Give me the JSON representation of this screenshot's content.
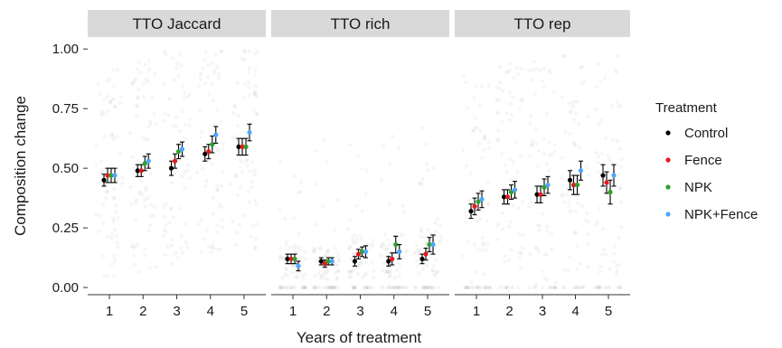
{
  "chart_data": {
    "type": "scatter",
    "facets": [
      "TTO Jaccard",
      "TTO rich",
      "TTO rep"
    ],
    "x": [
      1,
      2,
      3,
      4,
      5
    ],
    "xlabel": "Years of treatment",
    "ylabel": "Composition change",
    "ylim": [
      -0.03,
      1.05
    ],
    "yticks": [
      "0.00",
      "0.25",
      "0.50",
      "0.75",
      "1.00"
    ],
    "legend_title": "Treatment",
    "legend_position": "right",
    "series": [
      {
        "name": "Control",
        "color": "#000000",
        "values": [
          [
            0.45,
            0.49,
            0.5,
            0.56,
            0.59
          ],
          [
            0.12,
            0.11,
            0.11,
            0.11,
            0.12
          ],
          [
            0.32,
            0.38,
            0.39,
            0.45,
            0.47
          ]
        ],
        "errors": [
          [
            0.025,
            0.025,
            0.03,
            0.03,
            0.035
          ],
          [
            0.02,
            0.015,
            0.02,
            0.02,
            0.02
          ],
          [
            0.03,
            0.03,
            0.035,
            0.04,
            0.045
          ]
        ]
      },
      {
        "name": "Fence",
        "color": "#e41a1c",
        "values": [
          [
            0.47,
            0.49,
            0.53,
            0.57,
            0.59
          ],
          [
            0.12,
            0.1,
            0.14,
            0.12,
            0.14
          ],
          [
            0.34,
            0.38,
            0.39,
            0.43,
            0.44
          ]
        ],
        "errors": [
          [
            0.03,
            0.025,
            0.03,
            0.03,
            0.035
          ],
          [
            0.02,
            0.015,
            0.02,
            0.025,
            0.025
          ],
          [
            0.035,
            0.03,
            0.035,
            0.04,
            0.045
          ]
        ]
      },
      {
        "name": "NPK",
        "color": "#2ca02c",
        "values": [
          [
            0.47,
            0.52,
            0.57,
            0.6,
            0.59
          ],
          [
            0.12,
            0.11,
            0.15,
            0.18,
            0.18
          ],
          [
            0.36,
            0.4,
            0.42,
            0.43,
            0.4
          ]
        ],
        "errors": [
          [
            0.03,
            0.03,
            0.03,
            0.035,
            0.035
          ],
          [
            0.02,
            0.015,
            0.02,
            0.035,
            0.03
          ],
          [
            0.035,
            0.03,
            0.035,
            0.04,
            0.05
          ]
        ]
      },
      {
        "name": "NPK+Fence",
        "color": "#4da6ff",
        "values": [
          [
            0.47,
            0.53,
            0.58,
            0.64,
            0.65
          ],
          [
            0.09,
            0.11,
            0.15,
            0.15,
            0.18
          ],
          [
            0.37,
            0.41,
            0.43,
            0.49,
            0.47
          ]
        ],
        "errors": [
          [
            0.03,
            0.03,
            0.03,
            0.035,
            0.035
          ],
          [
            0.02,
            0.015,
            0.025,
            0.03,
            0.04
          ],
          [
            0.035,
            0.035,
            0.035,
            0.04,
            0.045
          ]
        ]
      }
    ],
    "background_points": "faint grey jittered raw observations behind each year",
    "grid": false
  }
}
